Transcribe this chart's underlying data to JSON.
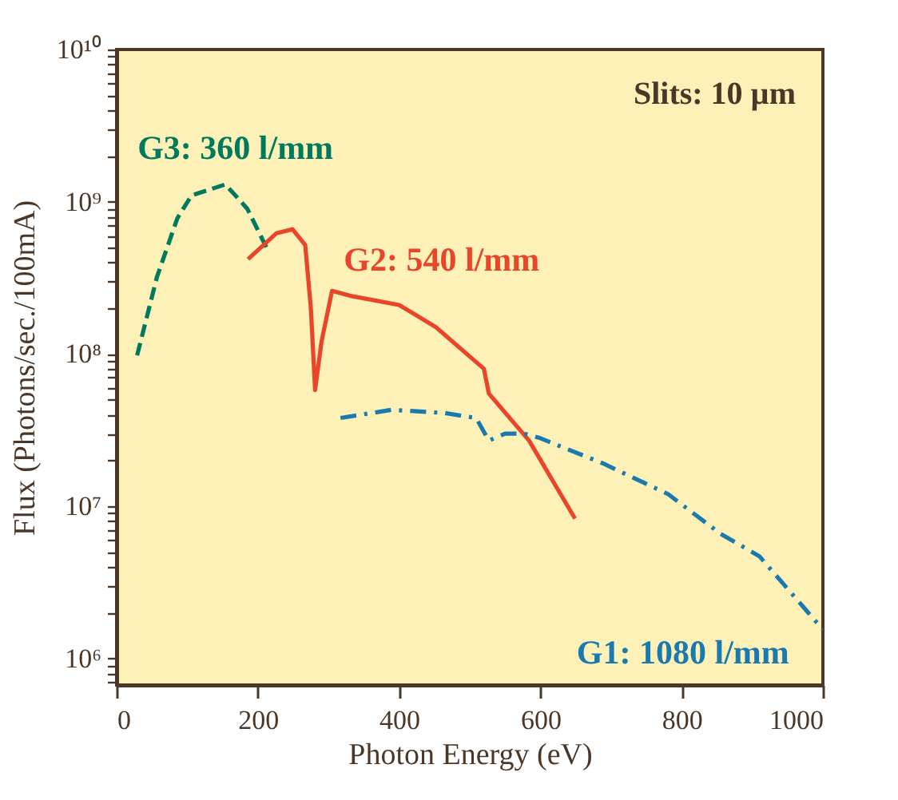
{
  "chart_data": {
    "type": "line",
    "xlabel": "Photon Energy (eV)",
    "ylabel": "Flux (Photons/sec./100mA)",
    "log": "y",
    "grid": false,
    "legend": false,
    "xlim": [
      0,
      1000
    ],
    "xticks": [
      0,
      200,
      400,
      600,
      800,
      {
        "value": 1000,
        "label": "1000"
      }
    ],
    "ylim": [
      670000,
      10000000000
    ],
    "yticks": [
      {
        "value": 1000000,
        "label": "10⁶"
      },
      {
        "value": 10000000,
        "label": "10⁷"
      },
      {
        "value": 100000000,
        "label": "10⁸"
      },
      {
        "value": 1000000000,
        "label": "10⁹"
      },
      {
        "value": 10000000000,
        "label": "10¹⁰"
      },
      {
        "value": 700000,
        "label": null
      },
      {
        "value": 800000,
        "label": null
      },
      {
        "value": 900000,
        "label": null
      },
      {
        "value": 2000000,
        "label": null
      },
      {
        "value": 3000000,
        "label": null
      },
      {
        "value": 4000000,
        "label": null
      },
      {
        "value": 5000000,
        "label": null
      },
      {
        "value": 6000000,
        "label": null
      },
      {
        "value": 7000000,
        "label": null
      },
      {
        "value": 8000000,
        "label": null
      },
      {
        "value": 9000000,
        "label": null
      },
      {
        "value": 20000000,
        "label": null
      },
      {
        "value": 30000000,
        "label": null
      },
      {
        "value": 40000000,
        "label": null
      },
      {
        "value": 50000000,
        "label": null
      },
      {
        "value": 60000000,
        "label": null
      },
      {
        "value": 70000000,
        "label": null
      },
      {
        "value": 80000000,
        "label": null
      },
      {
        "value": 90000000,
        "label": null
      },
      {
        "value": 200000000,
        "label": null
      },
      {
        "value": 300000000,
        "label": null
      },
      {
        "value": 400000000,
        "label": null
      },
      {
        "value": 500000000,
        "label": null
      },
      {
        "value": 600000000,
        "label": null
      },
      {
        "value": 700000000,
        "label": null
      },
      {
        "value": 800000000,
        "label": null
      },
      {
        "value": 900000000,
        "label": null
      },
      {
        "value": 2000000000,
        "label": null
      },
      {
        "value": 3000000000,
        "label": null
      },
      {
        "value": 4000000000,
        "label": null
      },
      {
        "value": 5000000000,
        "label": null
      },
      {
        "value": 6000000000,
        "label": null
      },
      {
        "value": 7000000000,
        "label": null
      },
      {
        "value": 8000000000,
        "label": null
      },
      {
        "value": 9000000000,
        "label": null
      }
    ],
    "annotations": [
      "Slits: 10 µm"
    ],
    "series": [
      {
        "name": "G3: 360 l/mm",
        "color": "#007a5e",
        "line_style": "dashed",
        "x": [
          29,
          57,
          86,
          106,
          154,
          185,
          215
        ],
        "values": [
          98000000,
          320000000,
          780000000,
          1100000000,
          1300000000,
          900000000,
          470000000
        ]
      },
      {
        "name": "G2: 540 l/mm",
        "color": "#e8452a",
        "line_style": "solid",
        "x": [
          186,
          226,
          249,
          267,
          275,
          281,
          290,
          305,
          333,
          400,
          452,
          520,
          527,
          584,
          649
        ],
        "values": [
          420000000,
          620000000,
          660000000,
          520000000,
          200000000,
          58000000,
          120000000,
          260000000,
          240000000,
          210000000,
          150000000,
          80000000,
          55000000,
          27000000,
          8300000
        ]
      },
      {
        "name": "G1: 1080 l/mm",
        "color": "#1a7ab0",
        "line_style": "dashdot",
        "x": [
          317,
          389,
          464,
          509,
          527,
          550,
          577,
          600,
          690,
          781,
          855,
          910,
          1000
        ],
        "values": [
          38000000,
          43000000,
          41000000,
          38000000,
          27000000,
          30000000,
          30000000,
          28000000,
          19000000,
          12000000,
          6600000,
          4700000,
          1550000
        ]
      }
    ]
  }
}
